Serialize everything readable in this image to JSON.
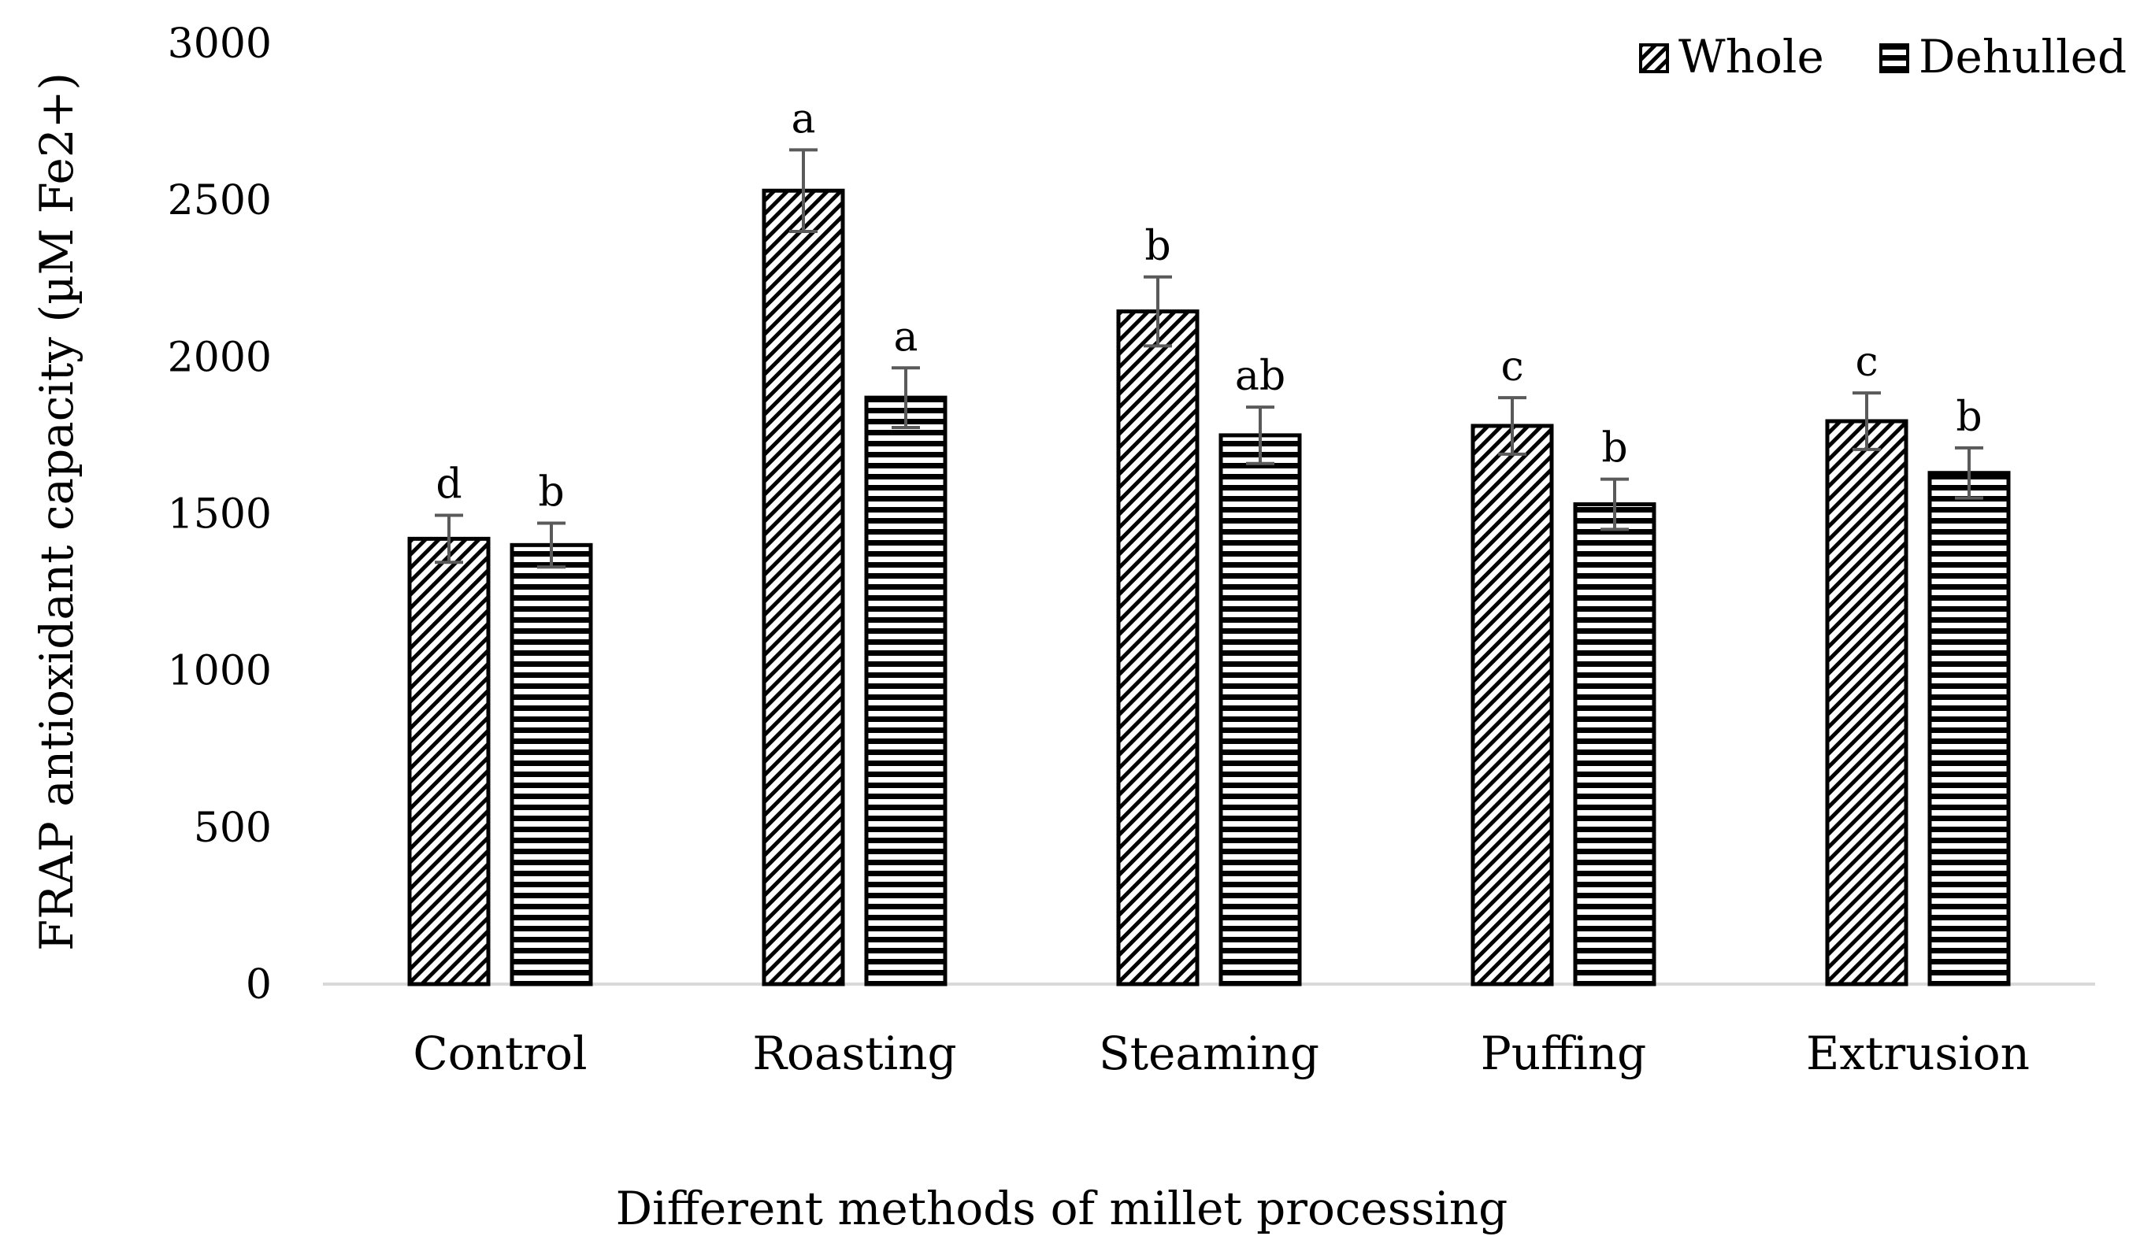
{
  "chart_data": {
    "type": "bar",
    "title": "",
    "xlabel": "Different methods of millet processing",
    "ylabel": "FRAP antioxidant capacity (µM Fe2+)",
    "ylim": [
      0,
      3000
    ],
    "yticks": [
      "0",
      "500",
      "1000",
      "1500",
      "2000",
      "2500",
      "3000"
    ],
    "categories": [
      "Control",
      "Roasting",
      "Steaming",
      "Puffing",
      "Extrusion"
    ],
    "legend_position": "top-right",
    "series": [
      {
        "name": "Whole",
        "pattern": "diagonal-hatch",
        "values": [
          1420,
          2530,
          2145,
          1780,
          1795
        ],
        "errors": [
          75,
          130,
          110,
          90,
          90
        ],
        "sig_labels": [
          "d",
          "a",
          "b",
          "c",
          "c"
        ]
      },
      {
        "name": "Dehulled",
        "pattern": "horizontal-stripes",
        "values": [
          1400,
          1870,
          1750,
          1530,
          1630
        ],
        "errors": [
          70,
          95,
          90,
          80,
          80
        ],
        "sig_labels": [
          "b",
          "a",
          "ab",
          "b",
          "b"
        ]
      }
    ],
    "colors": {
      "bar_stroke": "#000000",
      "pattern_ink": "#000000",
      "error_bar": "#5a5a5a",
      "axis_line": "#d9d9d9"
    }
  }
}
